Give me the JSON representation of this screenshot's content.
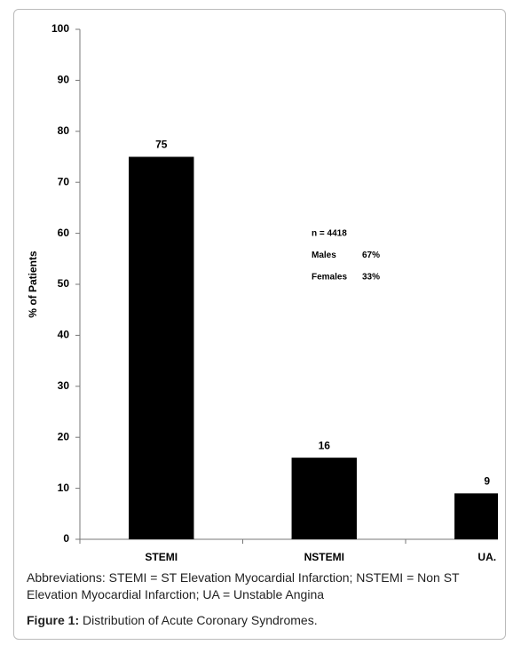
{
  "chart_data": {
    "type": "bar",
    "ylabel": "% of Patients",
    "categories": [
      "STEMI",
      "NSTEMI",
      "UA."
    ],
    "values": [
      75,
      16,
      9
    ],
    "color": "#000000",
    "ylim": [
      0,
      100
    ],
    "yticks": [
      0,
      10,
      20,
      30,
      40,
      50,
      60,
      70,
      80,
      90,
      100
    ],
    "annotations": [
      {
        "label": "n = 4418"
      },
      {
        "label": "Males",
        "value": "67%"
      },
      {
        "label": "Females",
        "value": "33%"
      }
    ]
  },
  "caption": {
    "abbreviations": "Abbreviations: STEMI = ST Elevation Myocardial Infarction; NSTEMI = Non ST Elevation Myocardial Infarction; UA = Unstable Angina",
    "figure_label": "Figure 1:",
    "figure_text": "Distribution of Acute Coronary Syndromes."
  }
}
